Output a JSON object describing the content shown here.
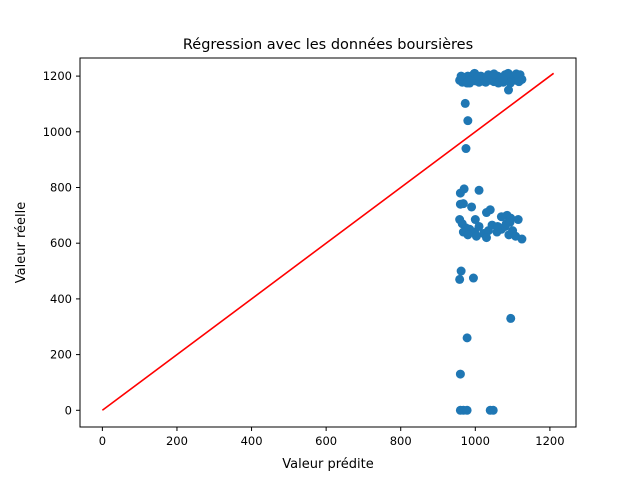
{
  "chart_data": {
    "type": "scatter",
    "title": "Régression avec les données boursières",
    "xlabel": "Valeur prédite",
    "ylabel": "Valeur réelle",
    "xlim": [
      -60,
      1270
    ],
    "ylim": [
      -60,
      1265
    ],
    "x_ticks": [
      0,
      200,
      400,
      600,
      800,
      1000,
      1200
    ],
    "y_ticks": [
      0,
      200,
      400,
      600,
      800,
      1000,
      1200
    ],
    "x_tick_labels": [
      "0",
      "200",
      "400",
      "600",
      "800",
      "1000",
      "1200"
    ],
    "y_tick_labels": [
      "0",
      "200",
      "400",
      "600",
      "800",
      "1000",
      "1200"
    ],
    "grid": false,
    "series": [
      {
        "kind": "scatter",
        "color": "#1f77b4",
        "points": [
          [
            958,
            1185
          ],
          [
            965,
            1178
          ],
          [
            970,
            1195
          ],
          [
            975,
            1180
          ],
          [
            980,
            1200
          ],
          [
            985,
            1175
          ],
          [
            990,
            1190
          ],
          [
            995,
            1205
          ],
          [
            1000,
            1183
          ],
          [
            1005,
            1195
          ],
          [
            1010,
            1178
          ],
          [
            1015,
            1200
          ],
          [
            1020,
            1188
          ],
          [
            1025,
            1180
          ],
          [
            1030,
            1192
          ],
          [
            1035,
            1205
          ],
          [
            1040,
            1185
          ],
          [
            1045,
            1198
          ],
          [
            1050,
            1180
          ],
          [
            1055,
            1190
          ],
          [
            1060,
            1200
          ],
          [
            1065,
            1183
          ],
          [
            1070,
            1195
          ],
          [
            1075,
            1178
          ],
          [
            1080,
            1205
          ],
          [
            1085,
            1188
          ],
          [
            1090,
            1198
          ],
          [
            1095,
            1180
          ],
          [
            1100,
            1193
          ],
          [
            1105,
            1202
          ],
          [
            1110,
            1185
          ],
          [
            1115,
            1196
          ],
          [
            1120,
            1205
          ],
          [
            1125,
            1188
          ],
          [
            962,
            1200
          ],
          [
            978,
            1175
          ],
          [
            988,
            1185
          ],
          [
            998,
            1210
          ],
          [
            1042,
            1190
          ],
          [
            1062,
            1175
          ],
          [
            1088,
            1210
          ],
          [
            1117,
            1180
          ],
          [
            1008,
            1200
          ],
          [
            1028,
            1178
          ],
          [
            1050,
            1208
          ],
          [
            1074,
            1190
          ],
          [
            1094,
            1175
          ],
          [
            1110,
            1208
          ],
          [
            1089,
            1150
          ],
          [
            973,
            1102
          ],
          [
            980,
            1040
          ],
          [
            975,
            940
          ],
          [
            960,
            780
          ],
          [
            970,
            795
          ],
          [
            1010,
            790
          ],
          [
            960,
            740
          ],
          [
            968,
            742
          ],
          [
            990,
            730
          ],
          [
            1030,
            710
          ],
          [
            1040,
            720
          ],
          [
            1085,
            700
          ],
          [
            1070,
            695
          ],
          [
            1095,
            690
          ],
          [
            1115,
            685
          ],
          [
            1000,
            685
          ],
          [
            958,
            685
          ],
          [
            965,
            670
          ],
          [
            975,
            655
          ],
          [
            985,
            650
          ],
          [
            998,
            640
          ],
          [
            1010,
            660
          ],
          [
            1022,
            635
          ],
          [
            1035,
            645
          ],
          [
            1045,
            665
          ],
          [
            1058,
            640
          ],
          [
            1070,
            650
          ],
          [
            1080,
            660
          ],
          [
            1090,
            630
          ],
          [
            1100,
            645
          ],
          [
            1108,
            625
          ],
          [
            1125,
            615
          ],
          [
            968,
            640
          ],
          [
            980,
            630
          ],
          [
            1003,
            625
          ],
          [
            1030,
            620
          ],
          [
            1060,
            660
          ],
          [
            1083,
            670
          ],
          [
            1093,
            675
          ],
          [
            962,
            500
          ],
          [
            958,
            470
          ],
          [
            995,
            475
          ],
          [
            1095,
            330
          ],
          [
            978,
            260
          ],
          [
            960,
            130
          ],
          [
            960,
            0
          ],
          [
            968,
            0
          ],
          [
            978,
            0
          ],
          [
            1040,
            0
          ],
          [
            1048,
            0
          ]
        ]
      },
      {
        "kind": "line",
        "color": "#ff0000",
        "x": [
          0,
          1210
        ],
        "y": [
          0,
          1210
        ]
      }
    ]
  }
}
